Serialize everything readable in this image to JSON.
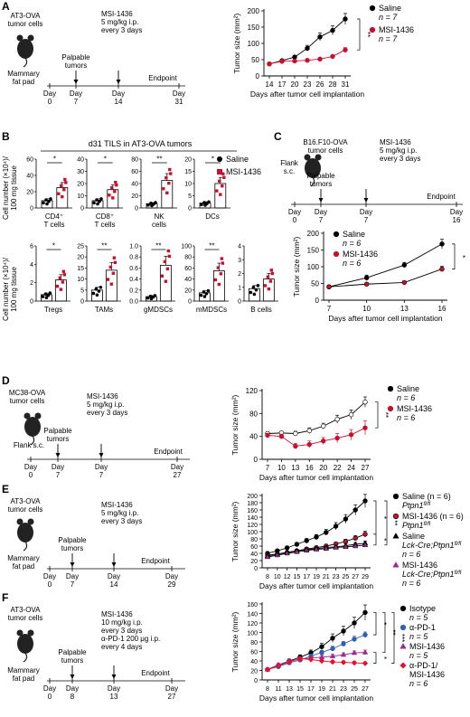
{
  "colors": {
    "saline": "#000000",
    "msi": "#c8102e",
    "pd1": "#2f5fb3",
    "combo": "#e8102e",
    "msi_purple": "#9b2b8c"
  },
  "common": {
    "xlabel": "Days after tumor cell implantation",
    "ylabel": "Tumor size (mm²)",
    "day": "Day",
    "endpoint": "Endpoint",
    "palpable": "Palpable",
    "tumors": "tumors",
    "msi_label": "MSI-1436",
    "dose": "5 mg/kg i.p.",
    "every3": "every 3 days",
    "saline": "Saline",
    "n7": "n = 7",
    "n6": "n = 6",
    "n5": "n = 5",
    "mammary1": "Mammary",
    "mammary2": "fat pad",
    "flank": "Flank s.c.",
    "flank1": "Flank",
    "flank2": "s.c.",
    "cells": "tumor cells",
    "sig2": "**",
    "sig1": "*",
    "sig3": "***"
  },
  "panelA": {
    "letter": "A",
    "cell_line": "AT3-OVA",
    "days": [
      "0",
      "7",
      "14",
      "31"
    ],
    "chart_data": {
      "type": "line",
      "x": [
        14,
        17,
        20,
        23,
        26,
        28,
        31
      ],
      "ylim": [
        0,
        200
      ],
      "yticks": [
        0,
        50,
        100,
        150,
        200
      ],
      "series": [
        {
          "name": "Saline",
          "n": "n = 7",
          "values": [
            37,
            47,
            58,
            85,
            120,
            140,
            175
          ],
          "err": [
            0,
            0,
            4,
            9,
            12,
            14,
            17
          ]
        },
        {
          "name": "MSI-1436",
          "n": "n = 7",
          "values": [
            37,
            45,
            46,
            48,
            52,
            60,
            80
          ],
          "err": [
            0,
            0,
            2,
            3,
            4,
            5,
            7
          ]
        }
      ]
    }
  },
  "panelB": {
    "letter": "B",
    "title": "d31 TILS in AT3-OVA tumors",
    "ylabel1": "Cell number (×10⁴)/",
    "ylabel2": "100 mg tissue",
    "legend": [
      "Saline",
      "MSI-1436"
    ],
    "top": [
      {
        "label1": "CD4⁺",
        "label2": "T cells",
        "ymax": 60,
        "yticks": [
          "0",
          "20",
          "40",
          "60"
        ],
        "saline": 9,
        "msi": 25,
        "sig": "*"
      },
      {
        "label1": "CD8⁺",
        "label2": "T cells",
        "ymax": 40,
        "yticks": [
          "0",
          "10",
          "20",
          "30",
          "40"
        ],
        "saline": 6,
        "msi": 15,
        "sig": "*"
      },
      {
        "label1": "NK",
        "label2": "cells",
        "ymax": 80,
        "yticks": [
          "0",
          "20",
          "40",
          "60",
          "80"
        ],
        "saline": 7,
        "msi": 45,
        "sig": "**"
      },
      {
        "label1": "DCs",
        "label2": "",
        "ymax": 20,
        "yticks": [
          "0",
          "5",
          "10",
          "15",
          "20"
        ],
        "saline": 2,
        "msi": 10,
        "sig": "*"
      }
    ],
    "bottom": [
      {
        "label1": "Tregs",
        "ymax": 6,
        "yticks": [
          "0",
          "2",
          "4",
          "6"
        ],
        "saline": 0.7,
        "msi": 2.3,
        "sig": "*"
      },
      {
        "label1": "TAMs",
        "ymax": 25,
        "yticks": [
          "0",
          "5",
          "10",
          "15",
          "20",
          "25"
        ],
        "saline": 5,
        "msi": 14,
        "sig": "**"
      },
      {
        "label1": "gMDSCs",
        "ymax": 1.0,
        "yticks": [
          "0.0",
          "0.2",
          "0.4",
          "0.6",
          "0.8",
          "1.0"
        ],
        "saline": 0.08,
        "msi": 0.65,
        "sig": "**"
      },
      {
        "label1": "mMDSCs",
        "ymax": 100,
        "yticks": [
          "0",
          "20",
          "40",
          "60",
          "80",
          "100"
        ],
        "saline": 15,
        "msi": 55,
        "sig": "**"
      },
      {
        "label1": "B cells",
        "ymax": 4,
        "yticks": [
          "0",
          "1",
          "2",
          "3",
          "4"
        ],
        "saline": 0.9,
        "msi": 1.6,
        "sig": ""
      }
    ]
  },
  "panelC": {
    "letter": "C",
    "cell_line": "B16.F10-OVA",
    "days": [
      "0",
      "7",
      "7",
      "16"
    ],
    "chart_data": {
      "type": "line",
      "x": [
        7,
        10,
        13,
        16
      ],
      "ylim": [
        0,
        200
      ],
      "yticks": [
        0,
        50,
        100,
        150,
        200
      ],
      "series": [
        {
          "name": "Saline",
          "n": "n = 6",
          "values": [
            40,
            67,
            105,
            168
          ],
          "err": [
            4,
            8,
            8,
            14
          ]
        },
        {
          "name": "MSI-1436",
          "n": "n = 6",
          "values": [
            40,
            48,
            53,
            93
          ],
          "err": [
            3,
            3,
            3,
            8
          ]
        }
      ]
    }
  },
  "panelD": {
    "letter": "D",
    "cell_line": "MC38-OVA",
    "days": [
      "0",
      "7",
      "7",
      "27"
    ],
    "chart_data": {
      "type": "line",
      "x": [
        7,
        10,
        13,
        16,
        20,
        22,
        24,
        27
      ],
      "ylim": [
        0,
        120
      ],
      "yticks": [
        0,
        40,
        80,
        120
      ],
      "series": [
        {
          "name": "Saline",
          "n": "n = 6",
          "values": [
            45,
            46,
            45,
            50,
            58,
            70,
            78,
            100
          ],
          "err": [
            3,
            3,
            4,
            5,
            5,
            7,
            8,
            9
          ]
        },
        {
          "name": "MSI-1436",
          "n": "n = 6",
          "values": [
            42,
            40,
            23,
            26,
            32,
            37,
            43,
            55
          ],
          "err": [
            3,
            4,
            5,
            6,
            6,
            8,
            9,
            12
          ]
        }
      ]
    }
  },
  "panelE": {
    "letter": "E",
    "cell_line": "AT3-OVA",
    "days": [
      "0",
      "7",
      "14",
      "29"
    ],
    "lck": "Lck-Cre;",
    "ptpn1": "Ptpn1",
    "flfl": "fl/fl",
    "chart_data": {
      "type": "line",
      "x": [
        8,
        10,
        12,
        15,
        17,
        19,
        21,
        23,
        25,
        27,
        29
      ],
      "ylim": [
        0,
        200
      ],
      "yticks": [
        0,
        20,
        40,
        60,
        80,
        100,
        120,
        140,
        160,
        180,
        200
      ],
      "series": [
        {
          "name": "Saline (n = 6)",
          "values": [
            40,
            47,
            55,
            65,
            75,
            85,
            98,
            115,
            135,
            160,
            185
          ],
          "err": [
            4,
            4,
            5,
            5,
            6,
            7,
            8,
            10,
            12,
            14,
            18
          ]
        },
        {
          "name": "MSI-1436 (n = 6)",
          "values": [
            35,
            38,
            42,
            47,
            52,
            56,
            60,
            66,
            73,
            82,
            93
          ],
          "err": [
            3,
            3,
            3,
            4,
            4,
            4,
            5,
            5,
            6,
            7,
            8
          ]
        },
        {
          "name": "Saline",
          "values": [
            33,
            38,
            43,
            47,
            50,
            53,
            56,
            58,
            61,
            65,
            68
          ],
          "err": [
            3,
            3,
            3,
            3,
            4,
            4,
            4,
            4,
            5,
            5,
            6
          ]
        },
        {
          "name": "MSI-1436",
          "values": [
            30,
            35,
            40,
            44,
            48,
            51,
            53,
            56,
            58,
            60,
            63
          ],
          "err": [
            3,
            3,
            3,
            3,
            3,
            4,
            4,
            4,
            4,
            5,
            5
          ]
        }
      ]
    }
  },
  "panelF": {
    "letter": "F",
    "cell_line": "AT3-OVA",
    "days": [
      "0",
      "8",
      "13",
      "27"
    ],
    "dose1": "10 mg/kg i.p.",
    "pd1_dose": "α-PD-1 200 μg i.p.",
    "every4": "every 4 days",
    "chart_data": {
      "type": "line",
      "x": [
        8,
        11,
        13,
        15,
        17,
        19,
        21,
        23,
        25,
        27
      ],
      "ylim": [
        0,
        160
      ],
      "yticks": [
        0,
        20,
        40,
        60,
        80,
        100,
        120,
        140,
        160
      ],
      "series": [
        {
          "name": "Isotype",
          "n": "n = 5",
          "values": [
            22,
            30,
            40,
            48,
            57,
            70,
            88,
            103,
            120,
            142
          ],
          "err": [
            2,
            3,
            4,
            5,
            6,
            7,
            9,
            10,
            12,
            16
          ]
        },
        {
          "name": "α-PD-1",
          "n": "n = 5",
          "values": [
            22,
            28,
            36,
            42,
            50,
            58,
            66,
            76,
            86,
            95
          ],
          "err": [
            2,
            2,
            3,
            3,
            4,
            4,
            5,
            5,
            6,
            6
          ]
        },
        {
          "name": "MSI-1436",
          "n": "n = 5",
          "values": [
            22,
            32,
            40,
            44,
            46,
            48,
            50,
            53,
            57,
            58
          ],
          "err": [
            2,
            3,
            3,
            3,
            3,
            4,
            4,
            4,
            4,
            5
          ]
        },
        {
          "name": "α-PD-1/",
          "name2": "MSI-1436",
          "n": "n = 6",
          "values": [
            22,
            30,
            38,
            45,
            43,
            40,
            38,
            37,
            36,
            35
          ],
          "err": [
            2,
            3,
            3,
            3,
            3,
            3,
            3,
            3,
            3,
            3
          ]
        }
      ]
    }
  }
}
